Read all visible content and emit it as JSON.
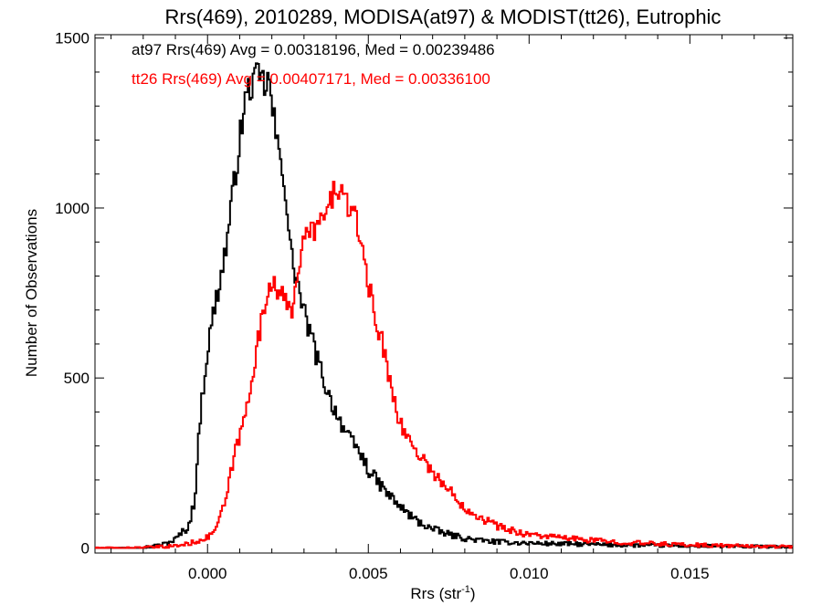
{
  "chart_data": {
    "type": "line",
    "title": "Rrs(469), 2010289, MODISA(at97) & MODIST(tt26), Eutrophic",
    "xlabel": "Rrs (str",
    "xlabel_superscript": "-1",
    "xlabel_suffix": ")",
    "ylabel": "Number of Observations",
    "xlim": [
      -0.0035,
      0.0182
    ],
    "ylim": [
      -15,
      1510
    ],
    "xticks": [
      0.0,
      0.005,
      0.01,
      0.015
    ],
    "xtick_labels": [
      "0.000",
      "0.005",
      "0.010",
      "0.015"
    ],
    "yticks": [
      0,
      500,
      1000,
      1500
    ],
    "ytick_labels": [
      "0",
      "500",
      "1000",
      "1500"
    ],
    "grid": false,
    "legend_position": "top-left",
    "series": [
      {
        "name": "at97",
        "color": "#000000",
        "stats_label": "at97 Rrs(469) Avg = 0.00318196, Med = 0.00239486",
        "x": [
          -0.0035,
          -0.003,
          -0.0025,
          -0.0022,
          -0.002,
          -0.0018,
          -0.0016,
          -0.0014,
          -0.0012,
          -0.001,
          -0.0008,
          -0.0006,
          -0.0004,
          -0.0002,
          0.0,
          0.0002,
          0.0004,
          0.0006,
          0.0008,
          0.001,
          0.0012,
          0.0014,
          0.0016,
          0.0018,
          0.0019,
          0.002,
          0.0021,
          0.0022,
          0.0023,
          0.0024,
          0.0025,
          0.0026,
          0.0028,
          0.003,
          0.0032,
          0.0034,
          0.0036,
          0.0038,
          0.004,
          0.0042,
          0.0044,
          0.0046,
          0.0048,
          0.005,
          0.0055,
          0.006,
          0.0065,
          0.007,
          0.0075,
          0.008,
          0.0085,
          0.009,
          0.0095,
          0.01,
          0.011,
          0.012,
          0.013,
          0.014,
          0.015,
          0.016,
          0.017,
          0.0182
        ],
        "values": [
          0,
          0,
          0,
          1,
          2,
          4,
          6,
          10,
          16,
          25,
          45,
          60,
          140,
          420,
          580,
          700,
          790,
          900,
          1050,
          1200,
          1330,
          1370,
          1385,
          1360,
          1380,
          1300,
          1240,
          1160,
          1140,
          1080,
          960,
          860,
          780,
          690,
          630,
          560,
          500,
          440,
          400,
          360,
          320,
          300,
          270,
          230,
          170,
          120,
          80,
          55,
          40,
          28,
          22,
          18,
          16,
          14,
          12,
          10,
          8,
          7,
          6,
          5,
          4,
          3
        ]
      },
      {
        "name": "tt26",
        "color": "#ff0000",
        "stats_label": "tt26 Rrs(469) Avg = 0.00407171, Med = 0.00336100",
        "x": [
          -0.0035,
          -0.003,
          -0.0025,
          -0.002,
          -0.0015,
          -0.001,
          -0.0006,
          -0.0004,
          -0.0002,
          0.0,
          0.0002,
          0.0004,
          0.0006,
          0.0008,
          0.001,
          0.0012,
          0.0014,
          0.0016,
          0.0018,
          0.002,
          0.0022,
          0.0024,
          0.0026,
          0.0028,
          0.003,
          0.0032,
          0.0034,
          0.0036,
          0.0038,
          0.004,
          0.0042,
          0.0044,
          0.0046,
          0.0048,
          0.005,
          0.0052,
          0.0054,
          0.0056,
          0.0058,
          0.006,
          0.0064,
          0.0068,
          0.0072,
          0.0076,
          0.008,
          0.0085,
          0.009,
          0.0095,
          0.01,
          0.011,
          0.012,
          0.013,
          0.014,
          0.015,
          0.016,
          0.017,
          0.0182
        ],
        "values": [
          0,
          0,
          0,
          1,
          3,
          6,
          12,
          18,
          25,
          30,
          50,
          90,
          150,
          260,
          330,
          400,
          520,
          620,
          720,
          800,
          760,
          720,
          690,
          820,
          900,
          930,
          950,
          960,
          1010,
          1070,
          1040,
          1000,
          960,
          900,
          780,
          680,
          620,
          520,
          450,
          360,
          300,
          250,
          200,
          160,
          120,
          90,
          65,
          50,
          40,
          30,
          22,
          16,
          12,
          9,
          7,
          5,
          4
        ]
      }
    ]
  }
}
